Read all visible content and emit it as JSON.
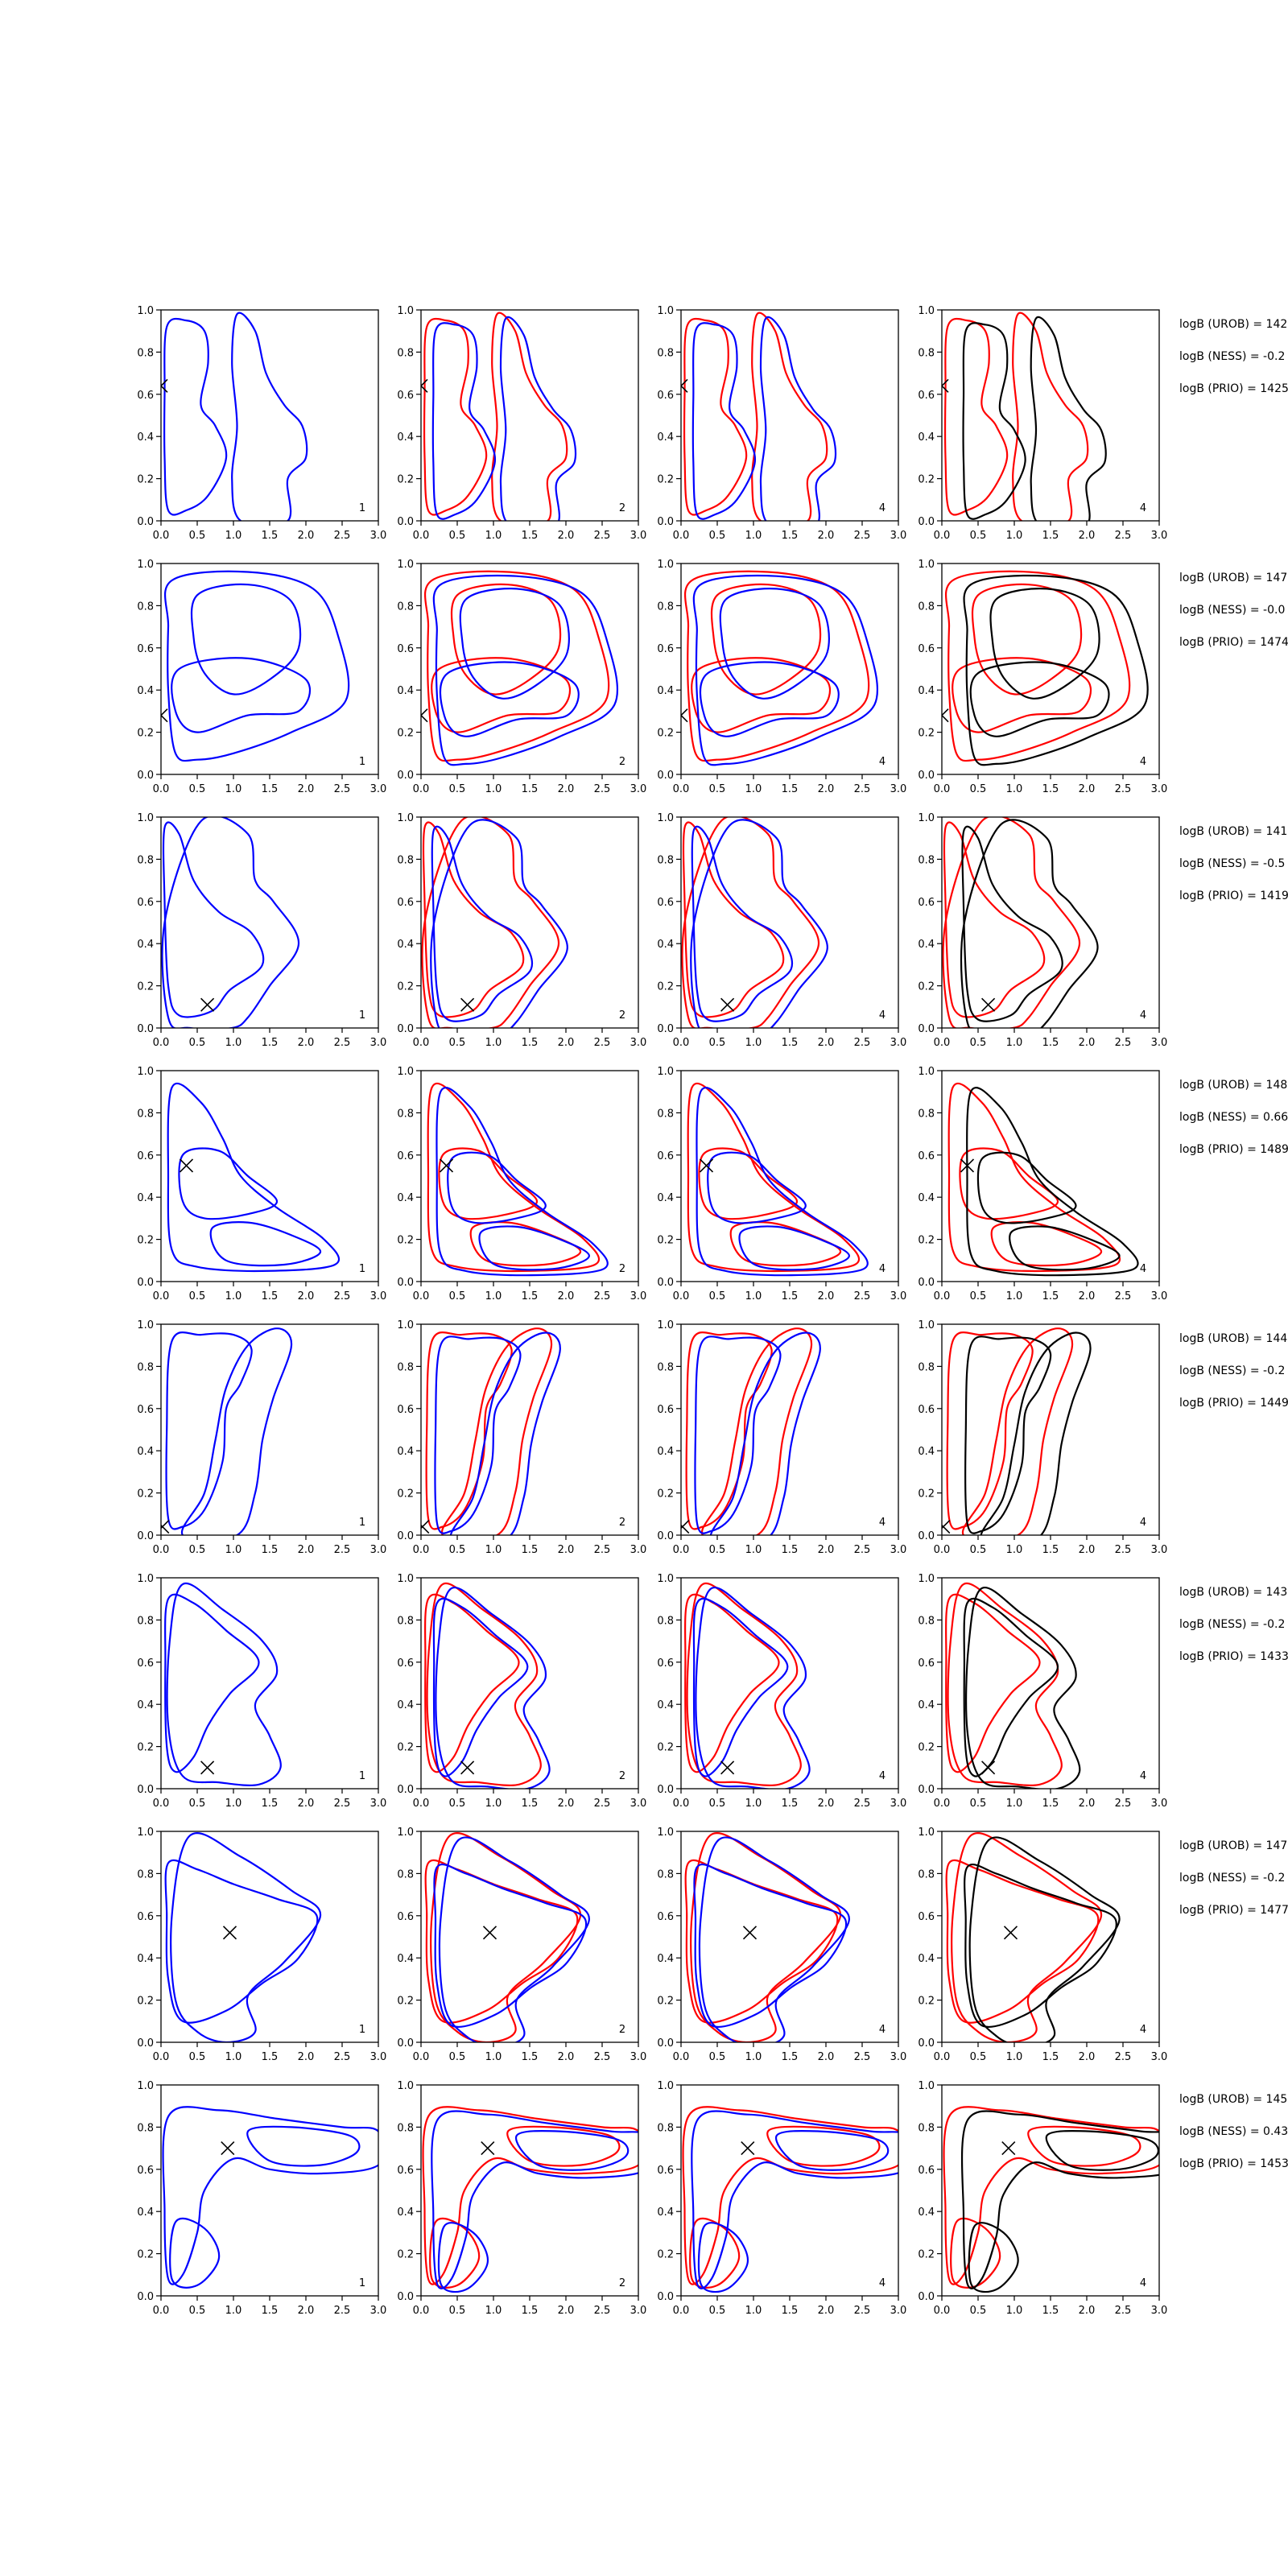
{
  "figure": {
    "colors": {
      "blue": "#0000ff",
      "red": "#ff0000",
      "black": "#000000",
      "axis": "#000000"
    }
  },
  "chart_data": {
    "type": "contour-grid",
    "rows": 8,
    "columns": 4,
    "xlim": [
      0.0,
      3.0
    ],
    "ylim": [
      0.0,
      1.0
    ],
    "xticks": [
      "0.0",
      "0.5",
      "1.0",
      "1.5",
      "2.0",
      "2.5",
      "3.0"
    ],
    "yticks": [
      "0.0",
      "0.2",
      "0.4",
      "0.6",
      "0.8",
      "1.0"
    ],
    "grid": false,
    "panel_numbers": [
      "1",
      "2",
      "4",
      "4"
    ],
    "column_colors": [
      [
        "blue"
      ],
      [
        "red",
        "blue"
      ],
      [
        "red",
        "blue"
      ],
      [
        "red",
        "black"
      ]
    ],
    "panels": [
      {
        "marker": [
          0.0,
          0.64
        ],
        "logB": [
          "logB (UROB) = 142",
          "logB (NESS) = -0.2",
          "logB (PRIO) = 1425"
        ],
        "shapes": [
          [
            [
              0.08,
              0.92
            ],
            [
              0.35,
              0.95
            ],
            [
              0.6,
              0.9
            ],
            [
              0.65,
              0.75
            ],
            [
              0.55,
              0.55
            ],
            [
              0.75,
              0.45
            ],
            [
              0.9,
              0.3
            ],
            [
              0.65,
              0.12
            ],
            [
              0.35,
              0.05
            ],
            [
              0.1,
              0.05
            ],
            [
              0.05,
              0.3
            ],
            [
              0.05,
              0.6
            ]
          ],
          [
            [
              1.05,
              0.98
            ],
            [
              1.3,
              0.9
            ],
            [
              1.45,
              0.7
            ],
            [
              1.7,
              0.55
            ],
            [
              1.95,
              0.45
            ],
            [
              2.0,
              0.3
            ],
            [
              1.75,
              0.2
            ],
            [
              1.75,
              0.0
            ],
            [
              1.1,
              0.0
            ],
            [
              0.98,
              0.2
            ],
            [
              1.05,
              0.45
            ],
            [
              0.98,
              0.75
            ]
          ]
        ]
      },
      {
        "marker": [
          0.0,
          0.28
        ],
        "logB": [
          "logB (UROB) = 147",
          "logB (NESS) = -0.0",
          "logB (PRIO) = 1474"
        ],
        "shapes": [
          [
            [
              0.15,
              0.92
            ],
            [
              1.2,
              0.96
            ],
            [
              2.1,
              0.88
            ],
            [
              2.45,
              0.65
            ],
            [
              2.55,
              0.35
            ],
            [
              1.8,
              0.2
            ],
            [
              1.0,
              0.1
            ],
            [
              0.5,
              0.07
            ],
            [
              0.2,
              0.1
            ],
            [
              0.1,
              0.4
            ],
            [
              0.1,
              0.7
            ]
          ],
          [
            [
              0.5,
              0.85
            ],
            [
              1.2,
              0.9
            ],
            [
              1.8,
              0.82
            ],
            [
              1.9,
              0.6
            ],
            [
              1.5,
              0.45
            ],
            [
              1.0,
              0.38
            ],
            [
              0.6,
              0.48
            ],
            [
              0.45,
              0.65
            ]
          ],
          [
            [
              0.25,
              0.5
            ],
            [
              1.2,
              0.55
            ],
            [
              2.0,
              0.45
            ],
            [
              1.9,
              0.3
            ],
            [
              1.2,
              0.28
            ],
            [
              0.5,
              0.2
            ],
            [
              0.2,
              0.3
            ]
          ]
        ]
      },
      {
        "marker": [
          0.64,
          0.11
        ],
        "logB": [
          "logB (UROB) = 141",
          "logB (NESS) = -0.5",
          "logB (PRIO) = 1419"
        ],
        "shapes": [
          [
            [
              0.05,
              0.95
            ],
            [
              0.25,
              0.92
            ],
            [
              0.45,
              0.7
            ],
            [
              0.8,
              0.55
            ],
            [
              1.25,
              0.45
            ],
            [
              1.4,
              0.3
            ],
            [
              0.95,
              0.18
            ],
            [
              0.7,
              0.08
            ],
            [
              0.25,
              0.06
            ],
            [
              0.1,
              0.2
            ],
            [
              0.05,
              0.6
            ]
          ],
          [
            [
              0.55,
              0.98
            ],
            [
              1.2,
              0.92
            ],
            [
              1.3,
              0.7
            ],
            [
              1.55,
              0.6
            ],
            [
              1.9,
              0.4
            ],
            [
              1.5,
              0.2
            ],
            [
              1.2,
              0.05
            ],
            [
              0.98,
              0.0
            ],
            [
              0.4,
              0.0
            ],
            [
              0.1,
              0.05
            ],
            [
              0.05,
              0.5
            ]
          ]
        ]
      },
      {
        "marker": [
          0.35,
          0.55
        ],
        "logB": [
          "logB (UROB) = 148",
          "logB (NESS) = 0.66",
          "logB (PRIO) = 1489"
        ],
        "shapes": [
          [
            [
              0.15,
              0.92
            ],
            [
              0.55,
              0.85
            ],
            [
              0.85,
              0.68
            ],
            [
              1.1,
              0.5
            ],
            [
              1.6,
              0.35
            ],
            [
              2.25,
              0.2
            ],
            [
              2.4,
              0.08
            ],
            [
              1.4,
              0.05
            ],
            [
              0.5,
              0.07
            ],
            [
              0.15,
              0.15
            ],
            [
              0.1,
              0.5
            ]
          ],
          [
            [
              0.3,
              0.6
            ],
            [
              0.8,
              0.62
            ],
            [
              1.2,
              0.5
            ],
            [
              1.6,
              0.38
            ],
            [
              1.2,
              0.32
            ],
            [
              0.6,
              0.3
            ],
            [
              0.3,
              0.38
            ]
          ],
          [
            [
              0.7,
              0.25
            ],
            [
              1.2,
              0.28
            ],
            [
              1.8,
              0.22
            ],
            [
              2.2,
              0.14
            ],
            [
              1.7,
              0.08
            ],
            [
              0.9,
              0.1
            ]
          ]
        ]
      },
      {
        "marker": [
          0.02,
          0.04
        ],
        "logB": [
          "logB (UROB) = 144",
          "logB (NESS) = -0.2",
          "logB (PRIO) = 1449"
        ],
        "shapes": [
          [
            [
              0.15,
              0.92
            ],
            [
              0.55,
              0.95
            ],
            [
              1.0,
              0.95
            ],
            [
              1.25,
              0.88
            ],
            [
              1.1,
              0.72
            ],
            [
              0.9,
              0.6
            ],
            [
              0.85,
              0.35
            ],
            [
              0.6,
              0.12
            ],
            [
              0.3,
              0.04
            ],
            [
              0.1,
              0.08
            ],
            [
              0.08,
              0.5
            ]
          ],
          [
            [
              1.6,
              0.98
            ],
            [
              1.8,
              0.9
            ],
            [
              1.55,
              0.65
            ],
            [
              1.4,
              0.45
            ],
            [
              1.3,
              0.2
            ],
            [
              1.05,
              0.0
            ],
            [
              0.3,
              0.0
            ],
            [
              0.6,
              0.2
            ],
            [
              0.75,
              0.45
            ],
            [
              0.9,
              0.7
            ],
            [
              1.2,
              0.9
            ]
          ]
        ]
      },
      {
        "marker": [
          0.64,
          0.1
        ],
        "logB": [
          "logB (UROB) = 143",
          "logB (NESS) = -0.2",
          "logB (PRIO) = 1433"
        ],
        "shapes": [
          [
            [
              0.1,
              0.9
            ],
            [
              0.45,
              0.88
            ],
            [
              0.9,
              0.75
            ],
            [
              1.35,
              0.6
            ],
            [
              0.95,
              0.45
            ],
            [
              0.65,
              0.3
            ],
            [
              0.45,
              0.15
            ],
            [
              0.2,
              0.08
            ],
            [
              0.08,
              0.2
            ],
            [
              0.06,
              0.6
            ]
          ],
          [
            [
              0.3,
              0.97
            ],
            [
              0.85,
              0.85
            ],
            [
              1.4,
              0.7
            ],
            [
              1.6,
              0.55
            ],
            [
              1.3,
              0.4
            ],
            [
              1.5,
              0.25
            ],
            [
              1.65,
              0.1
            ],
            [
              1.35,
              0.02
            ],
            [
              0.8,
              0.03
            ],
            [
              0.3,
              0.06
            ],
            [
              0.1,
              0.3
            ],
            [
              0.12,
              0.7
            ]
          ]
        ]
      },
      {
        "marker": [
          0.95,
          0.52
        ],
        "logB": [
          "logB (UROB) = 147",
          "logB (NESS) = -0.2",
          "logB (PRIO) = 1477"
        ],
        "shapes": [
          [
            [
              0.1,
              0.85
            ],
            [
              0.5,
              0.82
            ],
            [
              1.0,
              0.75
            ],
            [
              1.6,
              0.68
            ],
            [
              2.15,
              0.6
            ],
            [
              1.9,
              0.4
            ],
            [
              1.4,
              0.28
            ],
            [
              0.9,
              0.15
            ],
            [
              0.3,
              0.1
            ],
            [
              0.1,
              0.3
            ],
            [
              0.08,
              0.6
            ]
          ],
          [
            [
              0.4,
              0.98
            ],
            [
              1.1,
              0.88
            ],
            [
              1.8,
              0.72
            ],
            [
              2.2,
              0.6
            ],
            [
              1.7,
              0.38
            ],
            [
              1.2,
              0.22
            ],
            [
              1.3,
              0.05
            ],
            [
              0.9,
              0.0
            ],
            [
              0.5,
              0.05
            ],
            [
              0.2,
              0.2
            ],
            [
              0.15,
              0.6
            ]
          ]
        ]
      },
      {
        "marker": [
          0.92,
          0.7
        ],
        "logB": [
          "logB (UROB) = 145",
          "logB (NESS) = 0.43",
          "logB (PRIO) = 1453"
        ],
        "shapes": [
          [
            [
              0.1,
              0.85
            ],
            [
              0.8,
              0.88
            ],
            [
              1.6,
              0.84
            ],
            [
              2.5,
              0.8
            ],
            [
              3.0,
              0.78
            ],
            [
              3.0,
              0.62
            ],
            [
              2.2,
              0.58
            ],
            [
              1.5,
              0.6
            ],
            [
              1.0,
              0.65
            ],
            [
              0.6,
              0.5
            ],
            [
              0.5,
              0.3
            ],
            [
              0.3,
              0.1
            ],
            [
              0.1,
              0.08
            ],
            [
              0.05,
              0.4
            ]
          ],
          [
            [
              1.2,
              0.78
            ],
            [
              1.8,
              0.8
            ],
            [
              2.6,
              0.76
            ],
            [
              2.7,
              0.68
            ],
            [
              2.2,
              0.62
            ],
            [
              1.5,
              0.64
            ]
          ],
          [
            [
              0.2,
              0.35
            ],
            [
              0.6,
              0.32
            ],
            [
              0.8,
              0.18
            ],
            [
              0.5,
              0.05
            ],
            [
              0.15,
              0.08
            ]
          ]
        ]
      }
    ]
  }
}
